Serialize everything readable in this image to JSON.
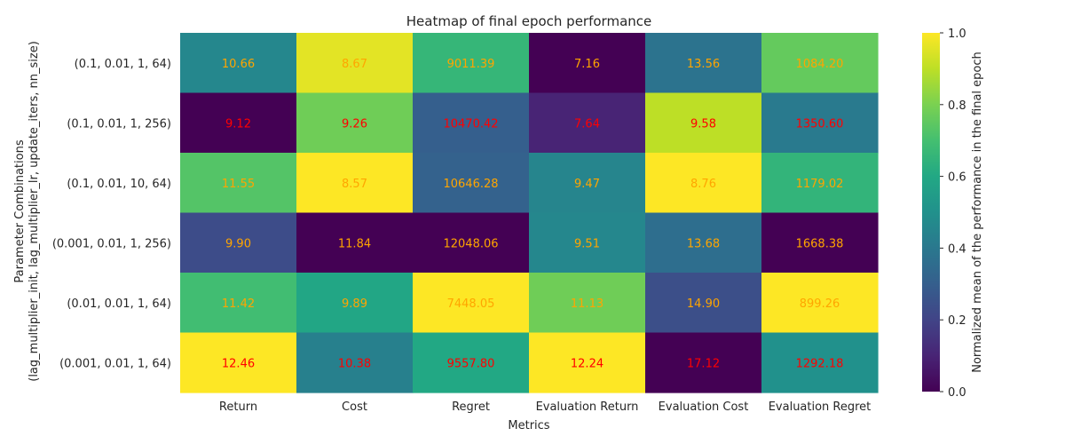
{
  "chart_data": {
    "type": "heatmap",
    "title": "Heatmap of final epoch performance",
    "xlabel": "Metrics",
    "ylabel_lines": [
      "Parameter Combinations",
      "(lag_multiplier_init, lag_multiplier_lr, update_iters, nn_size)"
    ],
    "columns": [
      "Return",
      "Cost",
      "Regret",
      "Evaluation Return",
      "Evaluation Cost",
      "Evaluation Regret"
    ],
    "rows": [
      "(0.1, 0.01, 1, 64)",
      "(0.1, 0.01, 1, 256)",
      "(0.1, 0.01, 10, 64)",
      "(0.001, 0.01, 1, 256)",
      "(0.01, 0.01, 1, 64)",
      "(0.001, 0.01, 1, 64)"
    ],
    "values": [
      [
        "10.66",
        "8.67",
        "9011.39",
        "7.16",
        "13.56",
        "1084.20"
      ],
      [
        "9.12",
        "9.26",
        "10470.42",
        "7.64",
        "9.58",
        "1350.60"
      ],
      [
        "11.55",
        "8.57",
        "10646.28",
        "9.47",
        "8.76",
        "1179.02"
      ],
      [
        "9.90",
        "11.84",
        "12048.06",
        "9.51",
        "13.68",
        "1668.38"
      ],
      [
        "11.42",
        "9.89",
        "7448.05",
        "11.13",
        "14.90",
        "899.26"
      ],
      [
        "12.46",
        "10.38",
        "9557.80",
        "12.24",
        "17.12",
        "1292.18"
      ]
    ],
    "normalized": [
      [
        0.46,
        0.96,
        0.66,
        0.0,
        0.38,
        0.76
      ],
      [
        0.0,
        0.78,
        0.3,
        0.1,
        0.9,
        0.41
      ],
      [
        0.73,
        1.0,
        0.31,
        0.45,
        1.0,
        0.65
      ],
      [
        0.23,
        0.0,
        0.0,
        0.46,
        0.36,
        0.0
      ],
      [
        0.69,
        0.59,
        1.0,
        0.78,
        0.24,
        1.0
      ],
      [
        1.0,
        0.43,
        0.6,
        1.0,
        0.0,
        0.5
      ]
    ],
    "label_colors": [
      [
        "orange",
        "orange",
        "orange",
        "orange",
        "orange",
        "orange"
      ],
      [
        "red",
        "red",
        "red",
        "red",
        "red",
        "red"
      ],
      [
        "orange",
        "orange",
        "orange",
        "orange",
        "orange",
        "orange"
      ],
      [
        "orange",
        "orange",
        "orange",
        "orange",
        "orange",
        "orange"
      ],
      [
        "orange",
        "orange",
        "orange",
        "orange",
        "orange",
        "orange"
      ],
      [
        "red",
        "red",
        "red",
        "red",
        "red",
        "red"
      ]
    ],
    "label_color_hex": {
      "orange": "#ffa500",
      "red": "#ff0000"
    },
    "colormap": "viridis",
    "colorbar": {
      "label": "Normalized mean of the performance in the final epoch",
      "range": [
        0,
        1
      ],
      "ticks": [
        "0.0",
        "0.2",
        "0.4",
        "0.6",
        "0.8",
        "1.0"
      ]
    },
    "grid": false
  }
}
